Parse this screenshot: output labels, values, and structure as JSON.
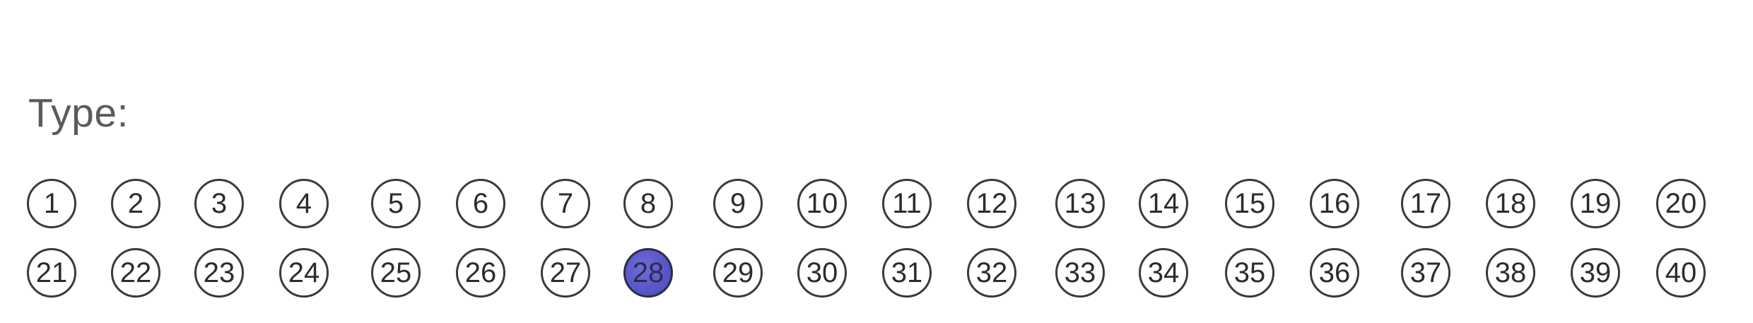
{
  "form": {
    "label": "Type:",
    "selected": 28,
    "options": [
      "1",
      "2",
      "3",
      "4",
      "5",
      "6",
      "7",
      "8",
      "9",
      "10",
      "11",
      "12",
      "13",
      "14",
      "15",
      "16",
      "17",
      "18",
      "19",
      "20",
      "21",
      "22",
      "23",
      "24",
      "25",
      "26",
      "27",
      "28",
      "29",
      "30",
      "31",
      "32",
      "33",
      "34",
      "35",
      "36",
      "37",
      "38",
      "39",
      "40"
    ]
  },
  "colors": {
    "fill": "#5a58c8",
    "ink": "#3a3a3a",
    "label": "#5b5b5b"
  }
}
